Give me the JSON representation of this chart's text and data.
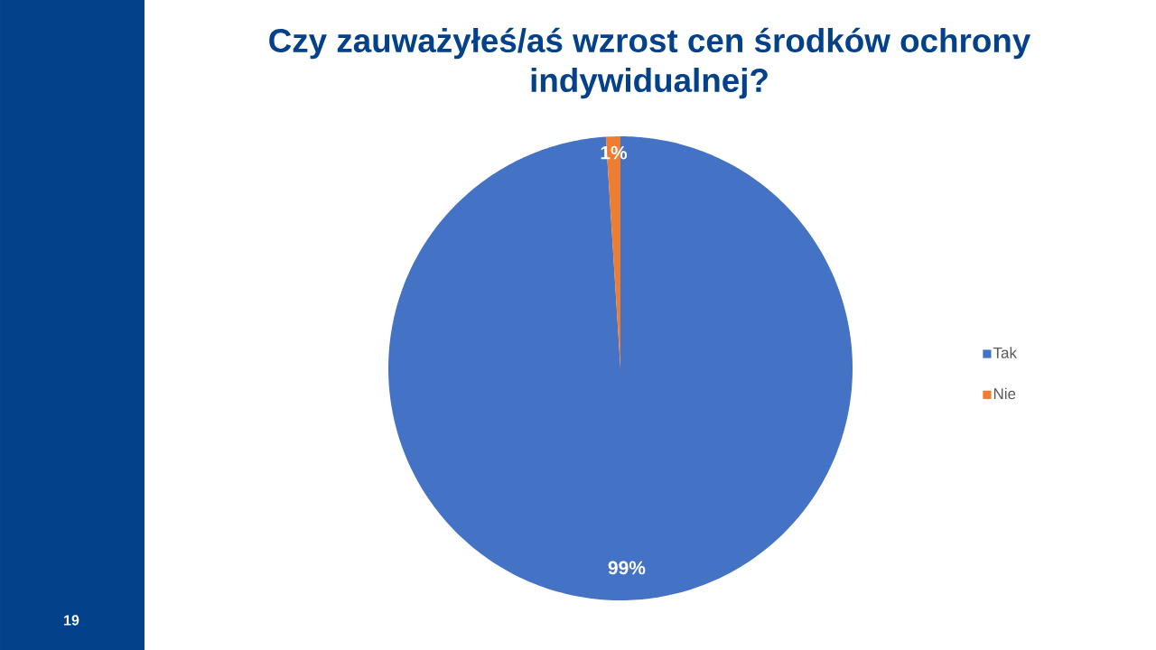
{
  "chart_data": {
    "type": "pie",
    "title": "Czy zauważyłeś/aś wzrost cen środków ochrony indywidualnej?",
    "categories": [
      "Tak",
      "Nie"
    ],
    "values": [
      99,
      1
    ],
    "colors": [
      "#4472c4",
      "#ed7d31"
    ],
    "value_labels": [
      "99%",
      "1%"
    ],
    "legend": "right",
    "annotations": [
      "19"
    ]
  }
}
